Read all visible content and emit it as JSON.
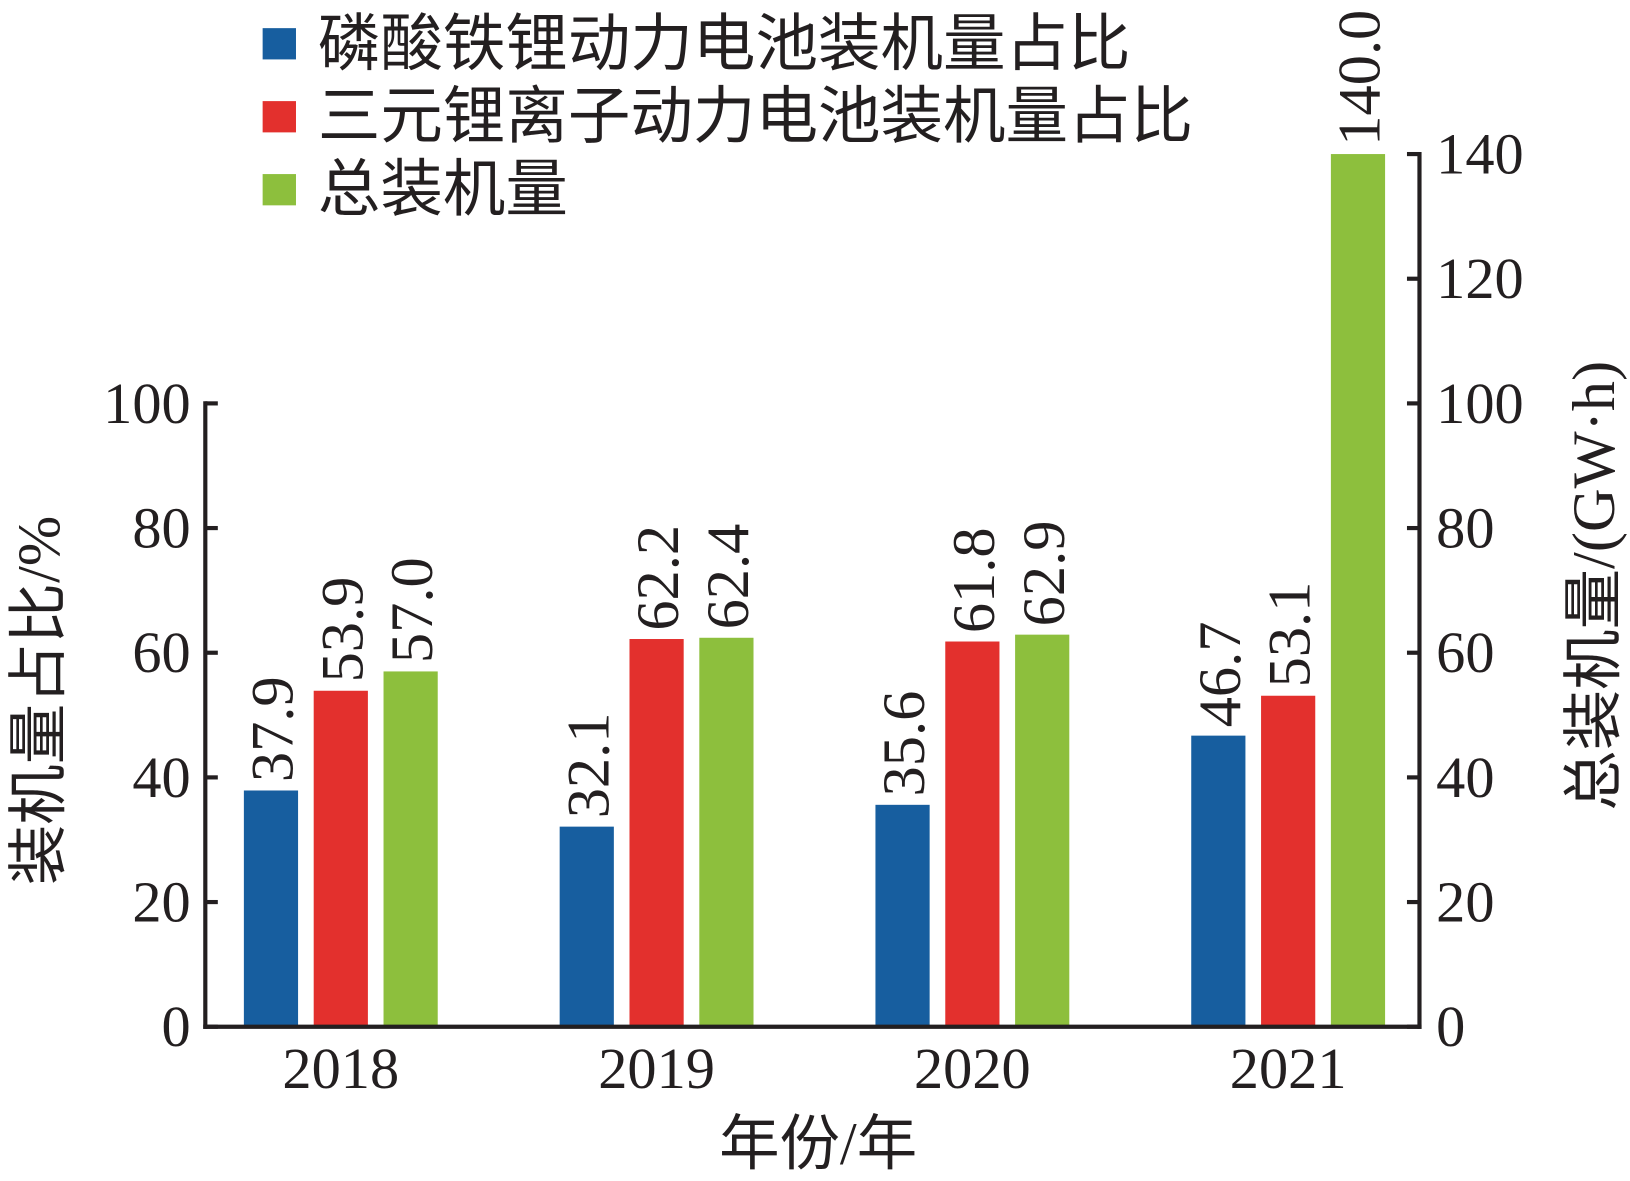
{
  "chart_data": {
    "type": "bar",
    "categories": [
      "2018",
      "2019",
      "2020",
      "2021"
    ],
    "series": [
      {
        "name": "磷酸铁锂动力电池装机量占比",
        "axis": "left",
        "color": "#175e9f",
        "values": [
          37.9,
          32.1,
          35.6,
          46.7
        ]
      },
      {
        "name": "三元锂离子动力电池装机量占比",
        "axis": "left",
        "color": "#e3302d",
        "values": [
          53.9,
          62.2,
          61.8,
          53.1
        ]
      },
      {
        "name": "总装机量",
        "axis": "right",
        "color": "#8dbf3d",
        "values": [
          57.0,
          62.4,
          62.9,
          140.0
        ]
      }
    ],
    "xlabel": "年份/年",
    "ylabel": "装机量占比/%",
    "y2label": "总装机量/(GW·h)",
    "ylim": [
      0,
      100
    ],
    "y2lim": [
      0,
      140
    ],
    "yticks": [
      0,
      20,
      40,
      60,
      80,
      100
    ],
    "y2ticks": [
      0,
      20,
      40,
      60,
      80,
      100,
      120,
      140
    ],
    "grid": false,
    "legend_position": "top-left"
  }
}
